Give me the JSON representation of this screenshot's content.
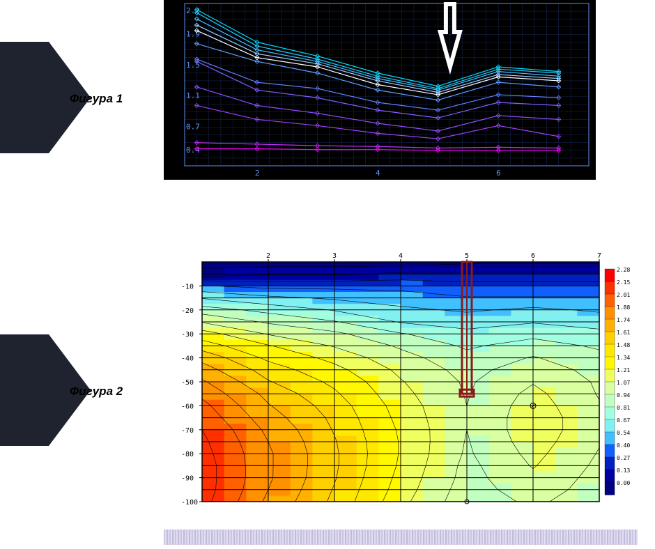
{
  "labels": {
    "fig1": "Фигура 1",
    "fig2": "Фигура 2"
  },
  "pointer": {
    "color": "#1f2330"
  },
  "chart1": {
    "type": "line",
    "background": "#000000",
    "grid_color": "#1a2a5a",
    "axis_color": "#6090f0",
    "tick_color": "#6090f0",
    "font_color": "#6090f0",
    "font_size": 11,
    "x_ticks": [
      2,
      4,
      6
    ],
    "x_range": [
      0.8,
      7.5
    ],
    "y_ticks": [
      0.4,
      0.7,
      1.1,
      1.5,
      1.9,
      2.2
    ],
    "y_range": [
      0.2,
      2.3
    ],
    "x_points": [
      1,
      2,
      3,
      4,
      5,
      6,
      7
    ],
    "series": [
      {
        "color": "#ff00ff",
        "values": [
          0.42,
          0.42,
          0.41,
          0.41,
          0.4,
          0.4,
          0.4
        ]
      },
      {
        "color": "#c030ff",
        "values": [
          0.5,
          0.48,
          0.46,
          0.45,
          0.43,
          0.44,
          0.43
        ]
      },
      {
        "color": "#a040ff",
        "values": [
          0.98,
          0.8,
          0.72,
          0.62,
          0.55,
          0.72,
          0.58
        ]
      },
      {
        "color": "#9050ff",
        "values": [
          1.22,
          0.98,
          0.88,
          0.75,
          0.65,
          0.85,
          0.8
        ]
      },
      {
        "color": "#8060ff",
        "values": [
          1.55,
          1.18,
          1.08,
          0.92,
          0.82,
          1.02,
          0.98
        ]
      },
      {
        "color": "#6080ff",
        "values": [
          1.58,
          1.28,
          1.2,
          1.02,
          0.92,
          1.12,
          1.08
        ]
      },
      {
        "color": "#60a0ff",
        "values": [
          1.78,
          1.55,
          1.4,
          1.18,
          1.05,
          1.28,
          1.22
        ]
      },
      {
        "color": "#ffffff",
        "values": [
          1.95,
          1.6,
          1.48,
          1.25,
          1.12,
          1.35,
          1.3
        ]
      },
      {
        "color": "#a0d0ff",
        "values": [
          2.02,
          1.65,
          1.52,
          1.3,
          1.15,
          1.38,
          1.33
        ]
      },
      {
        "color": "#40c0ff",
        "values": [
          2.1,
          1.7,
          1.55,
          1.33,
          1.18,
          1.42,
          1.36
        ]
      },
      {
        "color": "#20d0ff",
        "values": [
          2.18,
          1.75,
          1.58,
          1.36,
          1.2,
          1.45,
          1.4
        ]
      },
      {
        "color": "#00e0ff",
        "values": [
          2.22,
          1.8,
          1.62,
          1.4,
          1.23,
          1.48,
          1.42
        ]
      }
    ],
    "arrow": {
      "x": 5.2,
      "stroke": "#ffffff",
      "width": 6
    }
  },
  "chart2": {
    "type": "heatmap",
    "background": "#ffffff",
    "grid_color": "#000000",
    "font_color": "#000000",
    "font_size": 10,
    "x_range": [
      1,
      7
    ],
    "x_ticks": [
      2,
      3,
      4,
      5,
      6,
      7
    ],
    "y_range": [
      -100,
      0
    ],
    "y_ticks": [
      -10,
      -20,
      -30,
      -40,
      -50,
      -60,
      -70,
      -80,
      -90,
      -100
    ],
    "marker": {
      "x": 5,
      "y_top": 0,
      "y_bot": -55,
      "color": "#8b1a1a",
      "width": 14
    },
    "legend": {
      "colors": [
        "#ff0000",
        "#ff3000",
        "#ff6000",
        "#ff9000",
        "#ffb000",
        "#ffd000",
        "#ffe800",
        "#fff800",
        "#f0ff60",
        "#d8ffa0",
        "#c0ffc0",
        "#a0ffe0",
        "#80f0f0",
        "#40c0ff",
        "#1060ff",
        "#0020c0",
        "#0000a0",
        "#000080"
      ],
      "values": [
        2.28,
        2.15,
        2.01,
        1.88,
        1.74,
        1.61,
        1.48,
        1.34,
        1.21,
        1.07,
        0.94,
        0.81,
        0.67,
        0.54,
        0.4,
        0.27,
        0.13,
        0.0
      ]
    },
    "grid_x": [
      1,
      2,
      3,
      4,
      5,
      6,
      7
    ],
    "grid_y": [
      0,
      -5,
      -10,
      -15,
      -20,
      -25,
      -30,
      -35,
      -40,
      -45,
      -50,
      -55,
      -60,
      -65,
      -70,
      -75,
      -80,
      -85,
      -90,
      -95,
      -100
    ],
    "values": [
      [
        0.05,
        0.05,
        0.05,
        0.05,
        0.1,
        0.1,
        0.1
      ],
      [
        0.2,
        0.25,
        0.25,
        0.3,
        0.3,
        0.3,
        0.3
      ],
      [
        0.55,
        0.5,
        0.5,
        0.5,
        0.45,
        0.45,
        0.45
      ],
      [
        0.8,
        0.7,
        0.65,
        0.6,
        0.55,
        0.55,
        0.55
      ],
      [
        1.0,
        0.9,
        0.8,
        0.7,
        0.65,
        0.7,
        0.65
      ],
      [
        1.2,
        1.05,
        0.95,
        0.8,
        0.75,
        0.8,
        0.75
      ],
      [
        1.4,
        1.2,
        1.1,
        0.95,
        0.85,
        0.9,
        0.85
      ],
      [
        1.55,
        1.35,
        1.2,
        1.05,
        0.92,
        1.0,
        0.92
      ],
      [
        1.7,
        1.45,
        1.3,
        1.12,
        0.98,
        1.08,
        0.98
      ],
      [
        1.8,
        1.55,
        1.38,
        1.18,
        1.02,
        1.15,
        1.02
      ],
      [
        1.9,
        1.62,
        1.45,
        1.22,
        1.05,
        1.2,
        1.05
      ],
      [
        1.98,
        1.7,
        1.5,
        1.25,
        1.06,
        1.25,
        1.06
      ],
      [
        2.05,
        1.75,
        1.55,
        1.28,
        1.07,
        1.28,
        1.08
      ],
      [
        2.1,
        1.8,
        1.58,
        1.3,
        1.07,
        1.3,
        1.1
      ],
      [
        2.15,
        1.85,
        1.6,
        1.32,
        1.07,
        1.3,
        1.1
      ],
      [
        2.18,
        1.88,
        1.62,
        1.33,
        1.06,
        1.28,
        1.08
      ],
      [
        2.2,
        1.9,
        1.63,
        1.33,
        1.05,
        1.25,
        1.06
      ],
      [
        2.22,
        1.9,
        1.63,
        1.32,
        1.03,
        1.22,
        1.04
      ],
      [
        2.22,
        1.9,
        1.62,
        1.3,
        1.02,
        1.18,
        1.02
      ],
      [
        2.22,
        1.88,
        1.6,
        1.28,
        1.0,
        1.15,
        1.0
      ],
      [
        2.2,
        1.85,
        1.58,
        1.25,
        0.98,
        1.1,
        0.98
      ]
    ]
  }
}
